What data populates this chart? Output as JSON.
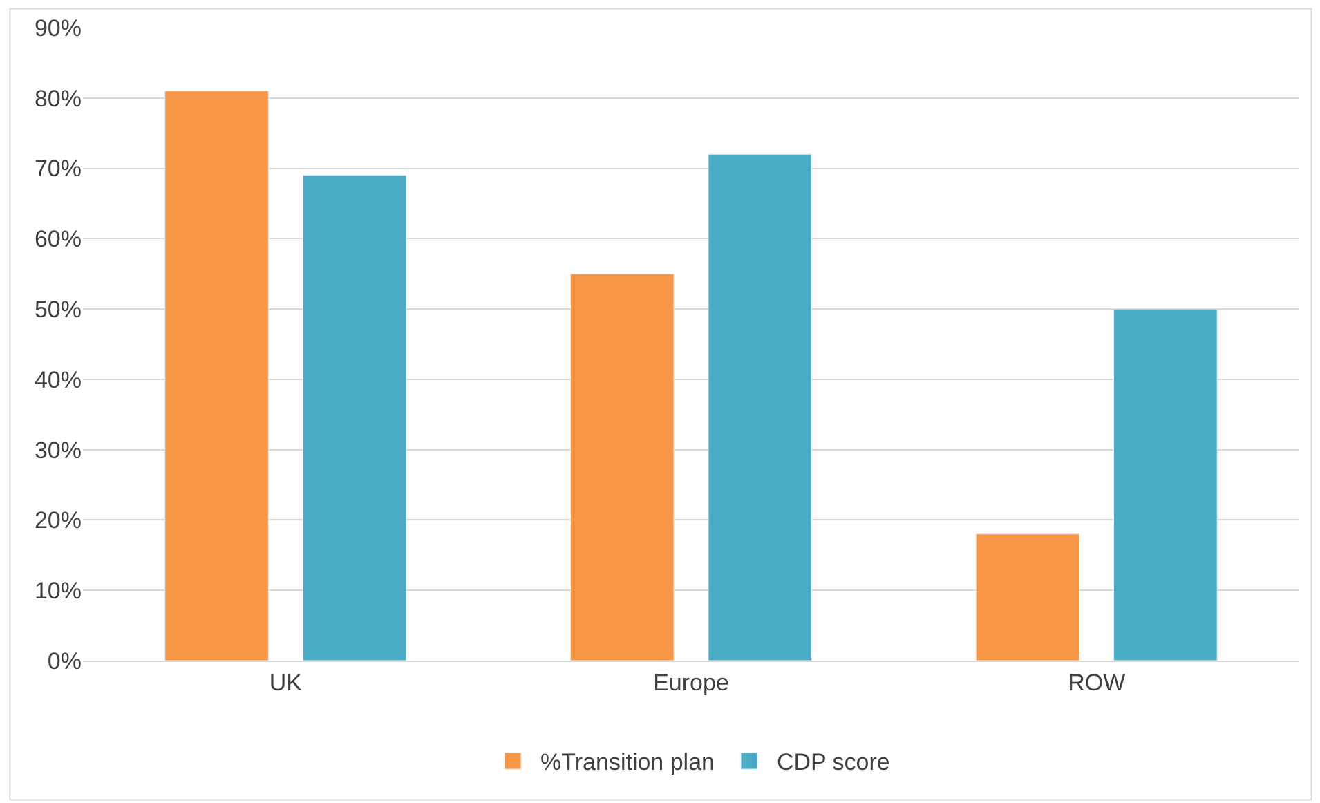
{
  "chart_data": {
    "type": "bar",
    "categories": [
      "UK",
      "Europe",
      "ROW"
    ],
    "series": [
      {
        "name": "%Transition plan",
        "color": "#f79646",
        "values": [
          81,
          55,
          18
        ]
      },
      {
        "name": "CDP score",
        "color": "#4bacc6",
        "values": [
          69,
          72,
          50
        ]
      }
    ],
    "ylim": [
      0,
      90
    ],
    "yticks": [
      {
        "value": 0,
        "label": "0%"
      },
      {
        "value": 10,
        "label": "10%"
      },
      {
        "value": 20,
        "label": "20%"
      },
      {
        "value": 30,
        "label": "30%"
      },
      {
        "value": 40,
        "label": "40%"
      },
      {
        "value": 50,
        "label": "50%"
      },
      {
        "value": 60,
        "label": "60%"
      },
      {
        "value": 70,
        "label": "70%"
      },
      {
        "value": 80,
        "label": "80%"
      },
      {
        "value": 90,
        "label": "90%"
      }
    ],
    "grid": "y",
    "legend": "bottom"
  }
}
